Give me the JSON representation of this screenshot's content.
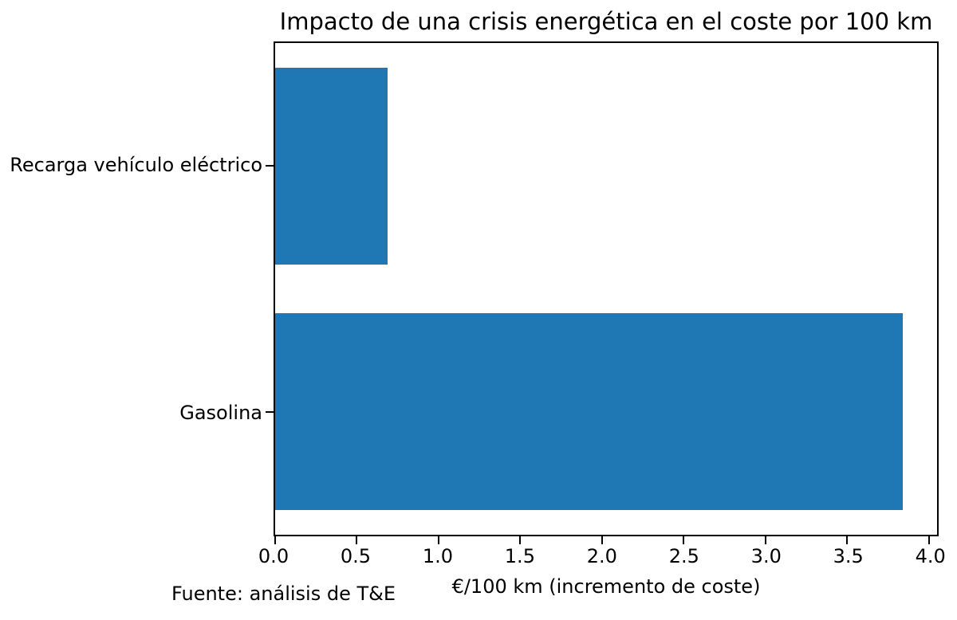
{
  "chart_data": {
    "type": "bar",
    "orientation": "horizontal",
    "title": "Impacto de una crisis energética en el coste por 100 km",
    "categories": [
      "Recarga vehículo eléctrico",
      "Gasolina"
    ],
    "values": [
      0.69,
      3.84
    ],
    "xlabel": "€/100 km (incremento de coste)",
    "ylabel": "",
    "xlim": [
      0,
      4.05
    ],
    "xticks": [
      0.0,
      0.5,
      1.0,
      1.5,
      2.0,
      2.5,
      3.0,
      3.5,
      4.0
    ],
    "xtick_labels": [
      "0.0",
      "0.5",
      "1.0",
      "1.5",
      "2.0",
      "2.5",
      "3.0",
      "3.5",
      "4.0"
    ],
    "bar_color": "#1f77b4",
    "bar_height_fraction": 0.8,
    "grid": false,
    "legend_position": "none",
    "source_note": "Fuente: análisis de T&E"
  }
}
